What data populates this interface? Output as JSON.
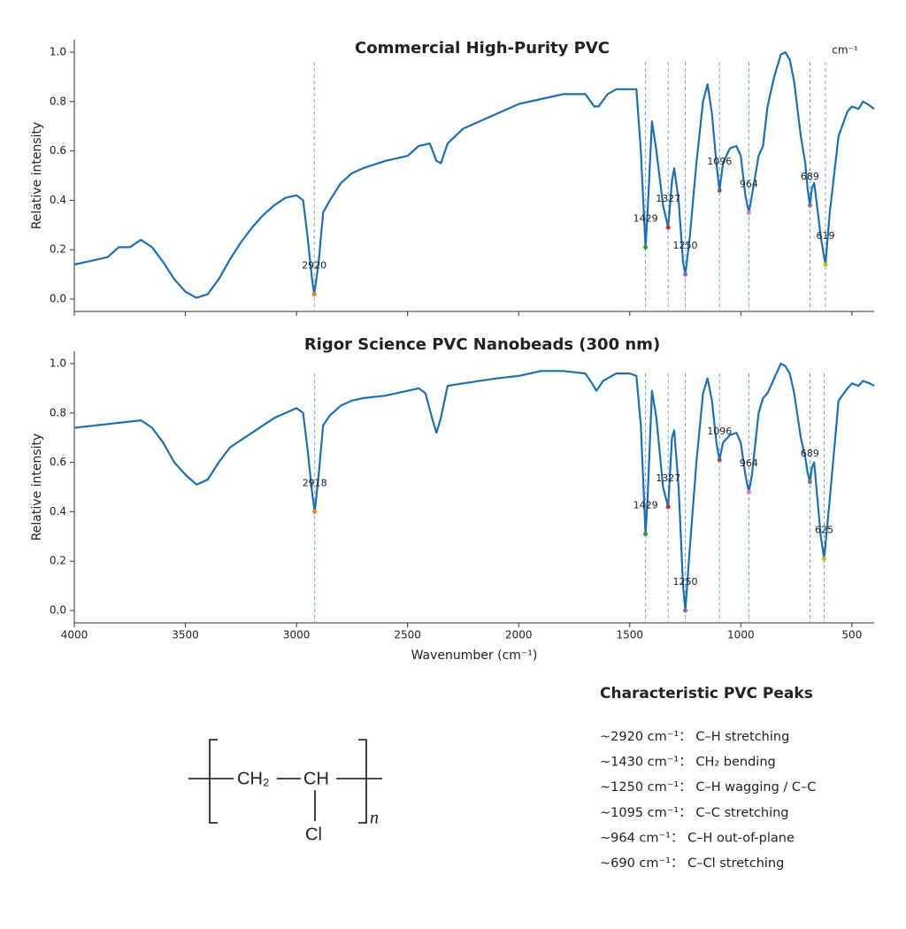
{
  "chart_data": [
    {
      "type": "line",
      "title": "Commercial High-Purity PVC",
      "ylabel": "Relative intensity",
      "note": "cm⁻¹",
      "color": "#1f6fb0",
      "xlim": [
        4000,
        400
      ],
      "ylim": [
        -0.05,
        1.05
      ],
      "xticks": [
        4000,
        3500,
        3000,
        2500,
        2000,
        1500,
        1000,
        500
      ],
      "yticks": [
        {
          "value": 0,
          "label": "0.0"
        },
        0.2,
        0.4,
        0.6,
        0.8,
        {
          "value": 1,
          "label": "1.0"
        }
      ],
      "x": [
        4000,
        3900,
        3850,
        3800,
        3750,
        3700,
        3650,
        3600,
        3550,
        3500,
        3450,
        3400,
        3350,
        3300,
        3250,
        3200,
        3150,
        3100,
        3050,
        3000,
        2970,
        2950,
        2930,
        2920,
        2900,
        2880,
        2850,
        2800,
        2750,
        2700,
        2600,
        2500,
        2450,
        2400,
        2370,
        2350,
        2320,
        2250,
        2200,
        2100,
        2000,
        1900,
        1800,
        1700,
        1660,
        1640,
        1600,
        1560,
        1500,
        1470,
        1450,
        1429,
        1420,
        1400,
        1380,
        1350,
        1327,
        1310,
        1300,
        1280,
        1260,
        1250,
        1230,
        1200,
        1170,
        1150,
        1130,
        1110,
        1096,
        1080,
        1050,
        1020,
        1000,
        980,
        964,
        950,
        920,
        900,
        880,
        850,
        820,
        800,
        780,
        760,
        730,
        710,
        700,
        689,
        680,
        670,
        660,
        640,
        619,
        600,
        560,
        520,
        500,
        470,
        450,
        430,
        400
      ],
      "values": [
        0.14,
        0.16,
        0.17,
        0.21,
        0.21,
        0.24,
        0.21,
        0.15,
        0.08,
        0.03,
        0.005,
        0.02,
        0.08,
        0.16,
        0.23,
        0.29,
        0.34,
        0.38,
        0.41,
        0.42,
        0.4,
        0.25,
        0.08,
        0.02,
        0.15,
        0.35,
        0.4,
        0.47,
        0.51,
        0.53,
        0.56,
        0.58,
        0.62,
        0.63,
        0.56,
        0.55,
        0.63,
        0.69,
        0.71,
        0.75,
        0.79,
        0.81,
        0.83,
        0.83,
        0.78,
        0.78,
        0.83,
        0.85,
        0.85,
        0.85,
        0.6,
        0.21,
        0.35,
        0.72,
        0.6,
        0.38,
        0.29,
        0.48,
        0.53,
        0.4,
        0.15,
        0.1,
        0.25,
        0.55,
        0.8,
        0.87,
        0.75,
        0.55,
        0.44,
        0.55,
        0.61,
        0.62,
        0.58,
        0.42,
        0.35,
        0.42,
        0.58,
        0.62,
        0.78,
        0.9,
        0.99,
        1.0,
        0.97,
        0.88,
        0.66,
        0.55,
        0.45,
        0.38,
        0.45,
        0.47,
        0.4,
        0.25,
        0.14,
        0.35,
        0.66,
        0.76,
        0.78,
        0.77,
        0.8,
        0.79,
        0.77
      ],
      "peaks": [
        {
          "x": 2920,
          "y": 0.02,
          "color": "#ff7f0e"
        },
        {
          "x": 1429,
          "y": 0.21,
          "color": "#2ca02c"
        },
        {
          "x": 1327,
          "y": 0.29,
          "color": "#d62728"
        },
        {
          "x": 1250,
          "y": 0.1,
          "color": "#9467bd"
        },
        {
          "x": 1096,
          "y": 0.44,
          "color": "#8c564b"
        },
        {
          "x": 964,
          "y": 0.35,
          "color": "#e377c2"
        },
        {
          "x": 689,
          "y": 0.38,
          "color": "#7f7f7f"
        },
        {
          "x": 619,
          "y": 0.14,
          "color": "#bcbd22"
        }
      ]
    },
    {
      "type": "line",
      "title": "Rigor Science PVC Nanobeads (300 nm)",
      "ylabel": "Relative intensity",
      "xlabel": "Wavenumber (cm⁻¹)",
      "color": "#1f6fb0",
      "xlim": [
        4000,
        400
      ],
      "ylim": [
        -0.05,
        1.05
      ],
      "xticks": [
        4000,
        3500,
        3000,
        2500,
        2000,
        1500,
        1000,
        500
      ],
      "yticks": [
        {
          "value": 0,
          "label": "0.0"
        },
        0.2,
        0.4,
        0.6,
        0.8,
        {
          "value": 1,
          "label": "1.0"
        }
      ],
      "x": [
        4000,
        3900,
        3800,
        3700,
        3650,
        3600,
        3550,
        3500,
        3450,
        3400,
        3350,
        3300,
        3200,
        3100,
        3000,
        2970,
        2950,
        2930,
        2918,
        2900,
        2880,
        2850,
        2800,
        2750,
        2700,
        2600,
        2500,
        2450,
        2420,
        2390,
        2370,
        2350,
        2320,
        2250,
        2100,
        2000,
        1900,
        1800,
        1700,
        1670,
        1650,
        1620,
        1560,
        1500,
        1470,
        1450,
        1429,
        1420,
        1400,
        1380,
        1350,
        1327,
        1310,
        1300,
        1280,
        1260,
        1250,
        1230,
        1200,
        1170,
        1150,
        1130,
        1110,
        1096,
        1080,
        1050,
        1020,
        1000,
        980,
        964,
        950,
        920,
        900,
        880,
        850,
        820,
        800,
        780,
        760,
        730,
        710,
        700,
        689,
        680,
        670,
        660,
        640,
        625,
        600,
        560,
        520,
        500,
        470,
        450,
        420,
        400
      ],
      "values": [
        0.74,
        0.75,
        0.76,
        0.77,
        0.74,
        0.68,
        0.6,
        0.55,
        0.51,
        0.53,
        0.6,
        0.66,
        0.72,
        0.78,
        0.82,
        0.8,
        0.65,
        0.48,
        0.4,
        0.55,
        0.75,
        0.79,
        0.83,
        0.85,
        0.86,
        0.87,
        0.89,
        0.9,
        0.88,
        0.78,
        0.72,
        0.78,
        0.91,
        0.92,
        0.94,
        0.95,
        0.97,
        0.97,
        0.96,
        0.92,
        0.89,
        0.93,
        0.96,
        0.96,
        0.95,
        0.75,
        0.31,
        0.45,
        0.89,
        0.78,
        0.5,
        0.42,
        0.7,
        0.73,
        0.5,
        0.1,
        0.0,
        0.25,
        0.6,
        0.88,
        0.94,
        0.85,
        0.68,
        0.61,
        0.68,
        0.71,
        0.72,
        0.68,
        0.55,
        0.48,
        0.55,
        0.8,
        0.86,
        0.88,
        0.94,
        1.0,
        0.99,
        0.96,
        0.88,
        0.7,
        0.62,
        0.56,
        0.52,
        0.58,
        0.6,
        0.5,
        0.3,
        0.21,
        0.45,
        0.85,
        0.9,
        0.92,
        0.91,
        0.93,
        0.92,
        0.91
      ],
      "peaks": [
        {
          "x": 2918,
          "y": 0.4,
          "color": "#ff7f0e"
        },
        {
          "x": 1429,
          "y": 0.31,
          "color": "#2ca02c"
        },
        {
          "x": 1327,
          "y": 0.42,
          "color": "#d62728"
        },
        {
          "x": 1250,
          "y": 0.0,
          "color": "#9467bd"
        },
        {
          "x": 1096,
          "y": 0.61,
          "color": "#8c564b"
        },
        {
          "x": 964,
          "y": 0.48,
          "color": "#e377c2"
        },
        {
          "x": 689,
          "y": 0.52,
          "color": "#7f7f7f"
        },
        {
          "x": 625,
          "y": 0.21,
          "color": "#bcbd22"
        }
      ]
    }
  ],
  "structure": {
    "group1": "CH₂",
    "group2": "CH",
    "substituent": "Cl",
    "repeat": "n"
  },
  "peak_list": {
    "title": "Characteristic PVC Peaks",
    "items": [
      "~2920 cm⁻¹： C–H stretching",
      "~1430 cm⁻¹： CH₂ bending",
      "~1250 cm⁻¹： C–H wagging / C–C",
      "~1095 cm⁻¹： C–C stretching",
      "~964 cm⁻¹： C–H out-of-plane",
      "~690 cm⁻¹： C–Cl stretching"
    ]
  }
}
